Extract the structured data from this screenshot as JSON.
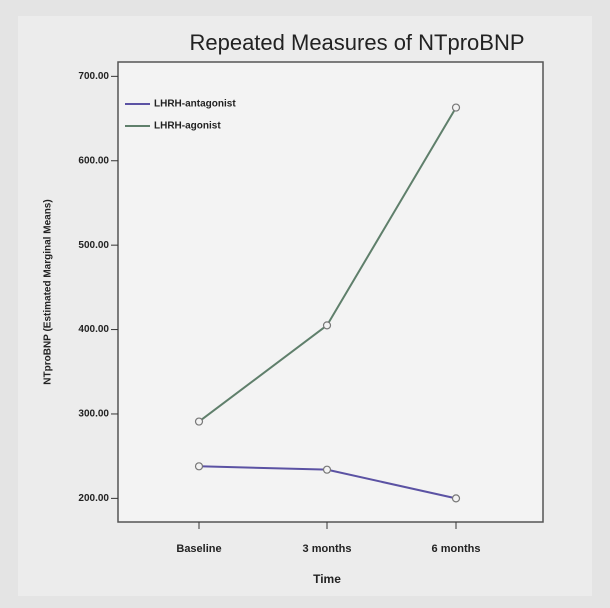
{
  "chart_data": {
    "type": "line",
    "title": "Repeated Measures of NTproBNP",
    "x_label": "Time",
    "y_label": "NTproBNP (Estimated Marginal Means)",
    "categories": [
      "Baseline",
      "3 months",
      "6 months"
    ],
    "series": [
      {
        "name": "LHRH-antagonist",
        "color": "#5b52a3",
        "values": [
          238,
          234,
          200
        ]
      },
      {
        "name": "LHRH-agonist",
        "color": "#5f7f6b",
        "values": [
          291,
          405,
          663
        ]
      }
    ],
    "ylim": [
      172,
      717
    ],
    "yticks": [
      {
        "value": 200,
        "label": "200.00"
      },
      {
        "value": 300,
        "label": "300.00"
      },
      {
        "value": 400,
        "label": "400.00"
      },
      {
        "value": 500,
        "label": "500.00"
      },
      {
        "value": 600,
        "label": "600.00"
      },
      {
        "value": 700,
        "label": "700.00"
      }
    ],
    "legend": "top-left"
  }
}
